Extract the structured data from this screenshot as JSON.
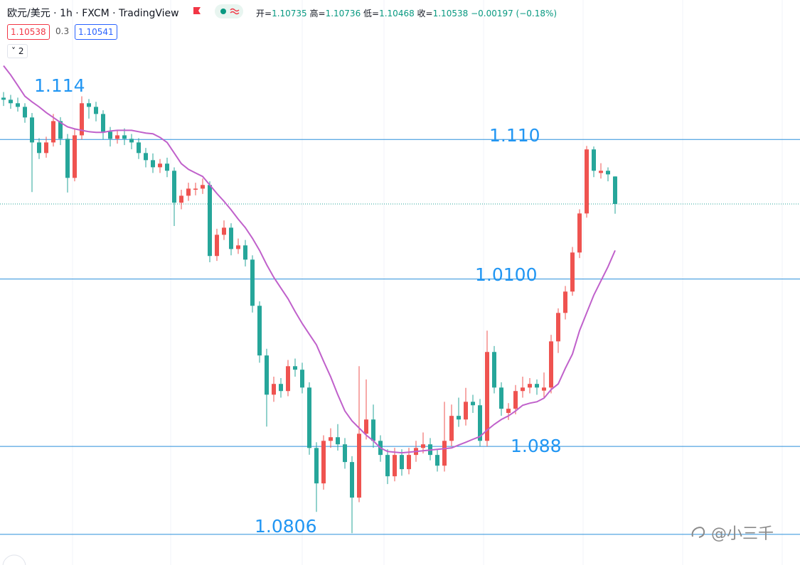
{
  "header": {
    "symbol": "欧元/美元 · 1h · FXCM · TradingView",
    "ohlc_labels": [
      "开=",
      "高=",
      "低=",
      "收="
    ],
    "change": "−0.00197 (−0.18%)",
    "bid": "1.10538",
    "spread": "0.3",
    "ask": "1.10541",
    "indicator_count": "2"
  },
  "watermark": "@小三千",
  "chart_data": {
    "type": "candlestick",
    "up_color": "#ef5350",
    "down_color": "#26a69a",
    "ylim": [
      1.0795,
      1.12
    ],
    "open": [
      1.113,
      1.11285,
      1.1126,
      1.11234,
      1.11158,
      1.10979,
      1.10903,
      1.10979,
      1.11132,
      1.11005,
      1.10725,
      1.1103,
      1.1126,
      1.11234,
      1.11183,
      1.11056,
      1.11005,
      1.1103,
      1.11005,
      1.10979,
      1.10903,
      1.10852,
      1.10801,
      1.10827,
      1.10776,
      1.10547,
      1.10597,
      1.1064,
      1.10648,
      1.10674,
      1.10165,
      1.10317,
      1.10368,
      1.10215,
      1.10241,
      1.10139,
      1.09808,
      1.09452,
      1.09171,
      1.09248,
      1.09197,
      1.09375,
      1.0935,
      1.09222,
      1.08789,
      1.08535,
      1.0884,
      1.08866,
      1.08815,
      1.08688,
      1.08433,
      1.08891,
      1.08993,
      1.0884,
      1.08739,
      1.08586,
      1.08739,
      1.08637,
      1.08739,
      1.08789,
      1.08815,
      1.08739,
      1.08662,
      1.0884,
      1.09019,
      1.08993,
      1.0912,
      1.09095,
      1.0884,
      1.09477,
      1.09222,
      1.0904,
      1.0907,
      1.09197,
      1.09222,
      1.09248,
      1.092,
      1.09222,
      1.09553,
      1.09757,
      1.0991,
      1.1019,
      1.1047,
      1.10929,
      1.1076,
      1.10776,
      1.10735
    ],
    "high": [
      1.1134,
      1.1132,
      1.113,
      1.1126,
      1.1119,
      1.1101,
      1.1102,
      1.11183,
      1.1116,
      1.1104,
      1.1108,
      1.1131,
      1.1129,
      1.1127,
      1.1121,
      1.1109,
      1.1107,
      1.1108,
      1.1104,
      1.1101,
      1.1094,
      1.109,
      1.1086,
      1.1087,
      1.108,
      1.1064,
      1.1069,
      1.1069,
      1.1072,
      1.107,
      1.1036,
      1.1042,
      1.104,
      1.1029,
      1.1028,
      1.1017,
      1.0984,
      1.095,
      1.093,
      1.0929,
      1.0942,
      1.0943,
      1.094,
      1.0926,
      1.0883,
      1.0888,
      1.0893,
      1.0896,
      1.0886,
      1.0873,
      1.09375,
      1.0928,
      1.091,
      1.0888,
      1.0878,
      1.0879,
      1.0878,
      1.0879,
      1.0884,
      1.089,
      1.0886,
      1.0878,
      1.0912,
      1.091,
      1.0915,
      1.0922,
      1.0917,
      1.0914,
      1.0963,
      1.0952,
      1.0926,
      1.0911,
      1.0924,
      1.093,
      1.0929,
      1.0928,
      1.0933,
      1.096,
      1.0979,
      1.0995,
      1.1023,
      1.105,
      1.10954,
      1.1095,
      1.1083,
      1.108,
      1.10736
    ],
    "low": [
      1.1124,
      1.1122,
      1.112,
      1.1112,
      1.10623,
      1.1086,
      1.1087,
      1.1095,
      1.1096,
      1.1062,
      1.107,
      1.11,
      1.1115,
      1.1113,
      1.11,
      1.1095,
      1.1097,
      1.1096,
      1.1093,
      1.1086,
      1.108,
      1.1076,
      1.1076,
      1.1073,
      1.1038,
      1.105,
      1.1056,
      1.106,
      1.1061,
      1.1012,
      1.1013,
      1.1028,
      1.1017,
      1.1018,
      1.1009,
      1.0976,
      1.094,
      1.08942,
      1.0912,
      1.0915,
      1.0916,
      1.093,
      1.0918,
      1.0874,
      1.08331,
      1.0849,
      1.0879,
      1.0877,
      1.0864,
      1.08178,
      1.084,
      1.0885,
      1.0879,
      1.0869,
      1.0853,
      1.0855,
      1.0859,
      1.086,
      1.0869,
      1.0875,
      1.087,
      1.0862,
      1.0862,
      1.088,
      1.0894,
      1.0895,
      1.0904,
      1.088,
      1.088,
      1.0918,
      1.0902,
      1.0899,
      1.0903,
      1.0915,
      1.0918,
      1.0917,
      1.0915,
      1.0918,
      1.0947,
      1.0971,
      1.0988,
      1.1015,
      1.1044,
      1.1073,
      1.1072,
      1.107,
      1.10468
    ],
    "close": [
      1.11285,
      1.1126,
      1.11234,
      1.11158,
      1.10979,
      1.10903,
      1.10979,
      1.11132,
      1.11005,
      1.10725,
      1.1103,
      1.1126,
      1.11234,
      1.11183,
      1.11056,
      1.11005,
      1.1103,
      1.11005,
      1.10979,
      1.10903,
      1.10852,
      1.10801,
      1.10827,
      1.10776,
      1.10547,
      1.10597,
      1.10648,
      1.10648,
      1.10674,
      1.10165,
      1.10317,
      1.10368,
      1.10215,
      1.10241,
      1.10139,
      1.09808,
      1.09452,
      1.09171,
      1.09248,
      1.09197,
      1.09375,
      1.0935,
      1.09222,
      1.08789,
      1.08535,
      1.0884,
      1.08866,
      1.08815,
      1.08688,
      1.08433,
      1.08891,
      1.08993,
      1.0884,
      1.08739,
      1.08586,
      1.08739,
      1.08637,
      1.08739,
      1.08789,
      1.08815,
      1.08739,
      1.08662,
      1.0884,
      1.09019,
      1.08993,
      1.0912,
      1.09095,
      1.0884,
      1.09477,
      1.09222,
      1.0907,
      1.0907,
      1.09197,
      1.09222,
      1.09248,
      1.09222,
      1.09222,
      1.09553,
      1.09757,
      1.0991,
      1.1019,
      1.1047,
      1.10929,
      1.10776,
      1.10776,
      1.1075,
      1.10538
    ],
    "ma": {
      "color": "#c061cb",
      "values": [
        1.11529,
        1.11463,
        1.11387,
        1.1131,
        1.1127,
        1.11234,
        1.11193,
        1.11158,
        1.11122,
        1.11091,
        1.11076,
        1.11066,
        1.11056,
        1.11051,
        1.11051,
        1.11061,
        1.11066,
        1.11066,
        1.11066,
        1.11056,
        1.11046,
        1.11041,
        1.11015,
        1.10979,
        1.10903,
        1.10827,
        1.10786,
        1.1076,
        1.10735,
        1.10674,
        1.10613,
        1.10557,
        1.10496,
        1.10429,
        1.10368,
        1.10292,
        1.10205,
        1.10103,
        1.10012,
        1.09935,
        1.09859,
        1.09767,
        1.09681,
        1.09604,
        1.09528,
        1.09411,
        1.09299,
        1.09171,
        1.09054,
        1.08983,
        1.08932,
        1.08881,
        1.0884,
        1.08789,
        1.08764,
        1.08759,
        1.08754,
        1.08759,
        1.08764,
        1.08769,
        1.08774,
        1.08779,
        1.08784,
        1.08789,
        1.0881,
        1.0883,
        1.08851,
        1.08871,
        1.08917,
        1.08958,
        1.08993,
        1.09019,
        1.09054,
        1.09095,
        1.0911,
        1.0912,
        1.09146,
        1.09207,
        1.09248,
        1.0936,
        1.09462,
        1.0963,
        1.09757,
        1.09884,
        1.09986,
        1.10088,
        1.10205
      ]
    },
    "hlines": [
      1.11,
      1.1,
      1.088,
      1.0817
    ],
    "hline_color": "#2a8fdb",
    "annotations": [
      "1.114",
      "1.110",
      "1.0100",
      "1.088",
      "1.0806"
    ],
    "annotation_color": "#2196f3",
    "last_price_line": true
  }
}
